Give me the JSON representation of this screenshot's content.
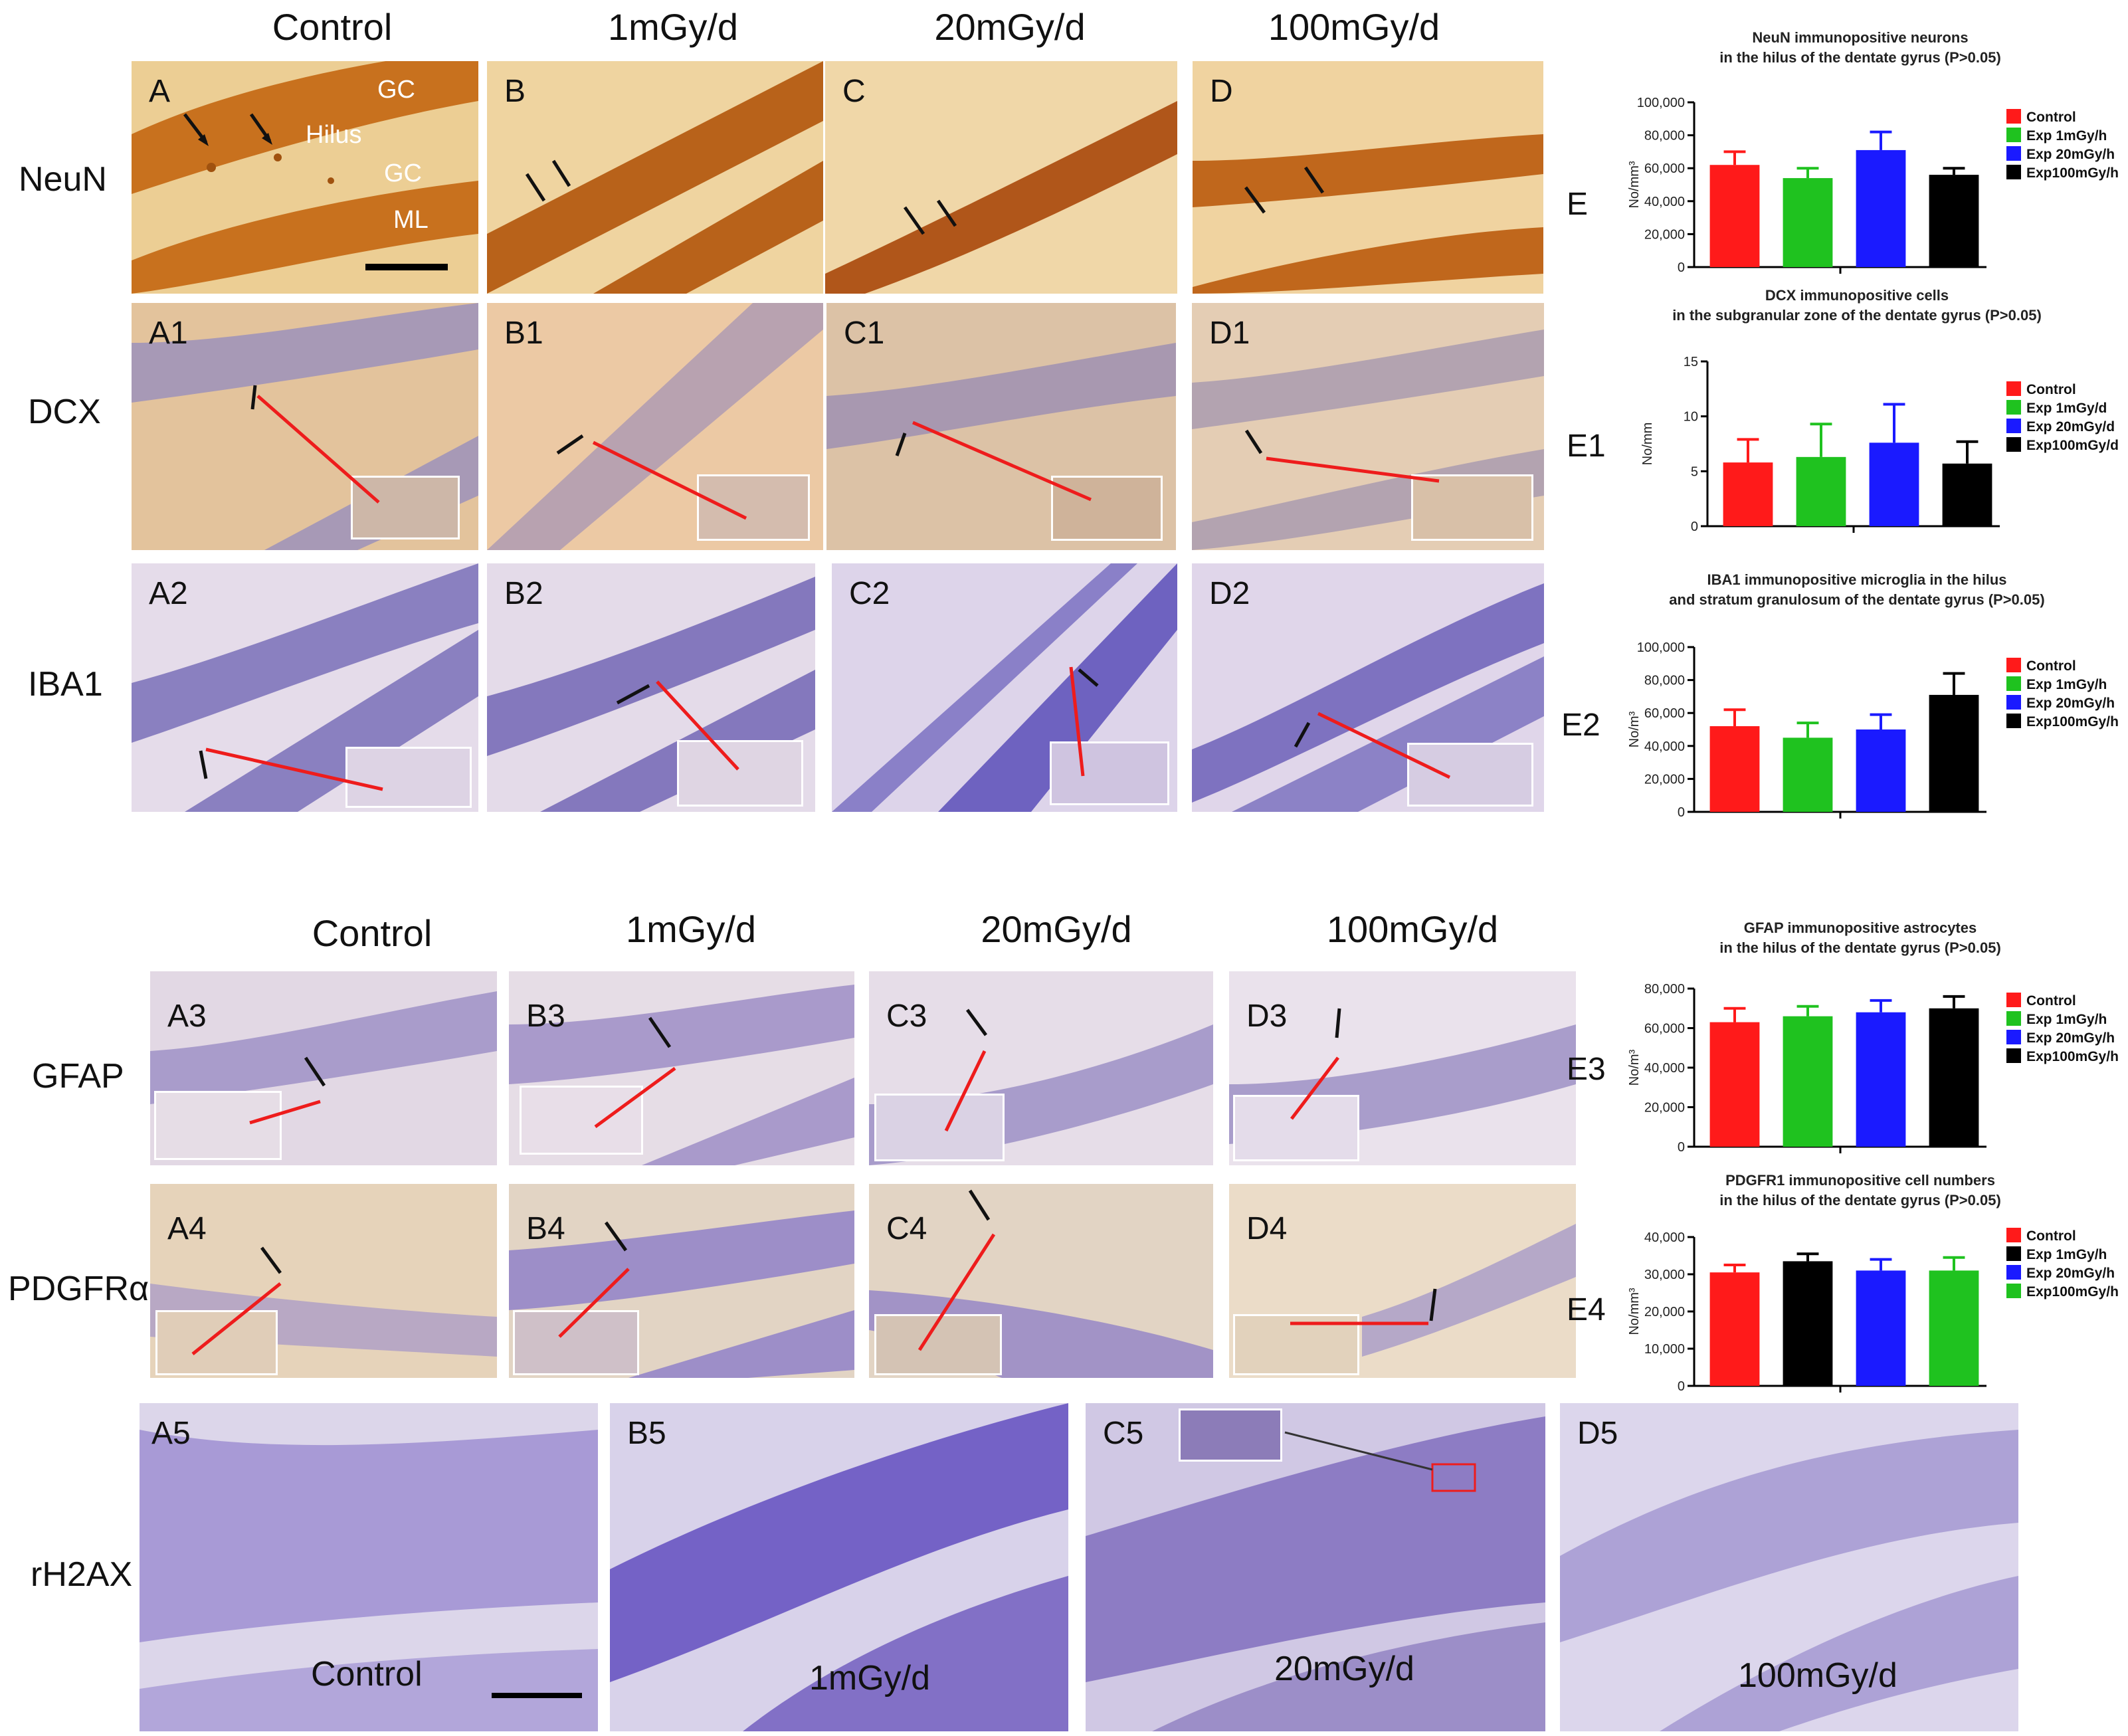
{
  "top_columns": [
    "Control",
    "1mGy/d",
    "20mGy/d",
    "100mGy/d"
  ],
  "bottom_columns": [
    "Control",
    "1mGy/d",
    "20mGy/d",
    "100mGy/d"
  ],
  "rows": [
    "NeuN",
    "DCX",
    "IBA1",
    "GFAP",
    "PDGFRα",
    "rH2AX"
  ],
  "panel_labels": {
    "neun": [
      "A",
      "B",
      "C",
      "D"
    ],
    "dcx": [
      "A1",
      "B1",
      "C1",
      "D1"
    ],
    "iba1": [
      "A2",
      "B2",
      "C2",
      "D2"
    ],
    "gfap": [
      "A3",
      "B3",
      "C3",
      "D3"
    ],
    "pdgfr": [
      "A4",
      "B4",
      "C4",
      "D4"
    ],
    "rh2ax": [
      "A5",
      "B5",
      "C5",
      "D5"
    ]
  },
  "neun_region_labels": {
    "gc_top": "GC",
    "hilus": "Hilus",
    "gc_bottom": "GC",
    "ml": "ML"
  },
  "rh2ax_captions": [
    "Control",
    "1mGy/d",
    "20mGy/d",
    "100mGy/d"
  ],
  "chart_letters": [
    "E",
    "E1",
    "E2",
    "E3",
    "E4"
  ],
  "colors": {
    "red": "#ff1a1a",
    "green": "#1fc21f",
    "blue": "#1a1aff",
    "black": "#000000",
    "neun_bg": "#e9c98e",
    "neun_cell": "#c0681a",
    "ihc_bg": "#e2cfd8",
    "ihc_cell": "#7a6ab8",
    "dcx_bg": "#e6c6a0",
    "rh2ax_bg": "#cdc6e8",
    "rh2ax_cell": "#7e6ac2"
  },
  "chart_data": [
    {
      "type": "bar",
      "title": "NeuN immunopositive neurons\nin the hilus of the dentate gyrus  (P>0.05)",
      "ylabel": "No/mm³",
      "ylim": [
        0,
        100000
      ],
      "yticks": [
        "0",
        "20,000",
        "40,000",
        "60,000",
        "80,000",
        "100,000"
      ],
      "categories": [
        "Control",
        "Exp 1mGy/h",
        "Exp 20mGy/h",
        "Exp100mGy/h"
      ],
      "values": [
        62000,
        54000,
        71000,
        56000
      ],
      "errors": [
        8000,
        6000,
        11000,
        4000
      ],
      "colors": [
        "red",
        "green",
        "blue",
        "black"
      ]
    },
    {
      "type": "bar",
      "title": "DCX immunopositive cells\nin the subgranular zone of the dentate gyrus (P>0.05)",
      "ylabel": "No/mm",
      "ylim": [
        0,
        15
      ],
      "yticks": [
        "0",
        "5",
        "10",
        "15"
      ],
      "categories": [
        "Control",
        "Exp 1mGy/d",
        "Exp 20mGy/d",
        "Exp100mGy/d"
      ],
      "values": [
        5.8,
        6.3,
        7.6,
        5.7
      ],
      "errors": [
        2.1,
        3.0,
        3.5,
        2.0
      ],
      "colors": [
        "red",
        "green",
        "blue",
        "black"
      ]
    },
    {
      "type": "bar",
      "title": "IBA1 immunopositive microglia in the hilus\nand stratum granulosum of the  dentate gyrus (P>0.05)",
      "ylabel": "No/m³",
      "ylim": [
        0,
        100000
      ],
      "yticks": [
        "0",
        "20,000",
        "40,000",
        "60,000",
        "80,000",
        "100,000"
      ],
      "categories": [
        "Control",
        "Exp 1mGy/h",
        "Exp 20mGy/h",
        "Exp100mGy/h"
      ],
      "values": [
        52000,
        45000,
        50000,
        71000
      ],
      "errors": [
        10000,
        9000,
        9000,
        13000
      ],
      "colors": [
        "red",
        "green",
        "blue",
        "black"
      ]
    },
    {
      "type": "bar",
      "title": "GFAP immunopositive astrocytes\nin the hilus of the dentate gyrus (P>0.05)",
      "ylabel": "No/m³",
      "ylim": [
        0,
        80000
      ],
      "yticks": [
        "0",
        "20,000",
        "40,000",
        "60,000",
        "80,000"
      ],
      "categories": [
        "Control",
        "Exp 1mGy/h",
        "Exp 20mGy/h",
        "Exp100mGy/h"
      ],
      "values": [
        63000,
        66000,
        68000,
        70000
      ],
      "errors": [
        7000,
        5000,
        6000,
        6000
      ],
      "colors": [
        "red",
        "green",
        "blue",
        "black"
      ]
    },
    {
      "type": "bar",
      "title": "PDGFR1 immunopositive cell numbers\nin the hilus of the dentate gyrus (P>0.05)",
      "ylabel": "No/mm³",
      "ylim": [
        0,
        40000
      ],
      "yticks": [
        "0",
        "10,000",
        "20,000",
        "30,000",
        "40,000"
      ],
      "categories": [
        "Control",
        "Exp 1mGy/h",
        "Exp 20mGy/h",
        "Exp100mGy/h"
      ],
      "values": [
        30500,
        33500,
        31000,
        31000
      ],
      "errors": [
        2000,
        2000,
        3000,
        3500
      ],
      "colors": [
        "red",
        "black",
        "blue",
        "green"
      ]
    }
  ]
}
